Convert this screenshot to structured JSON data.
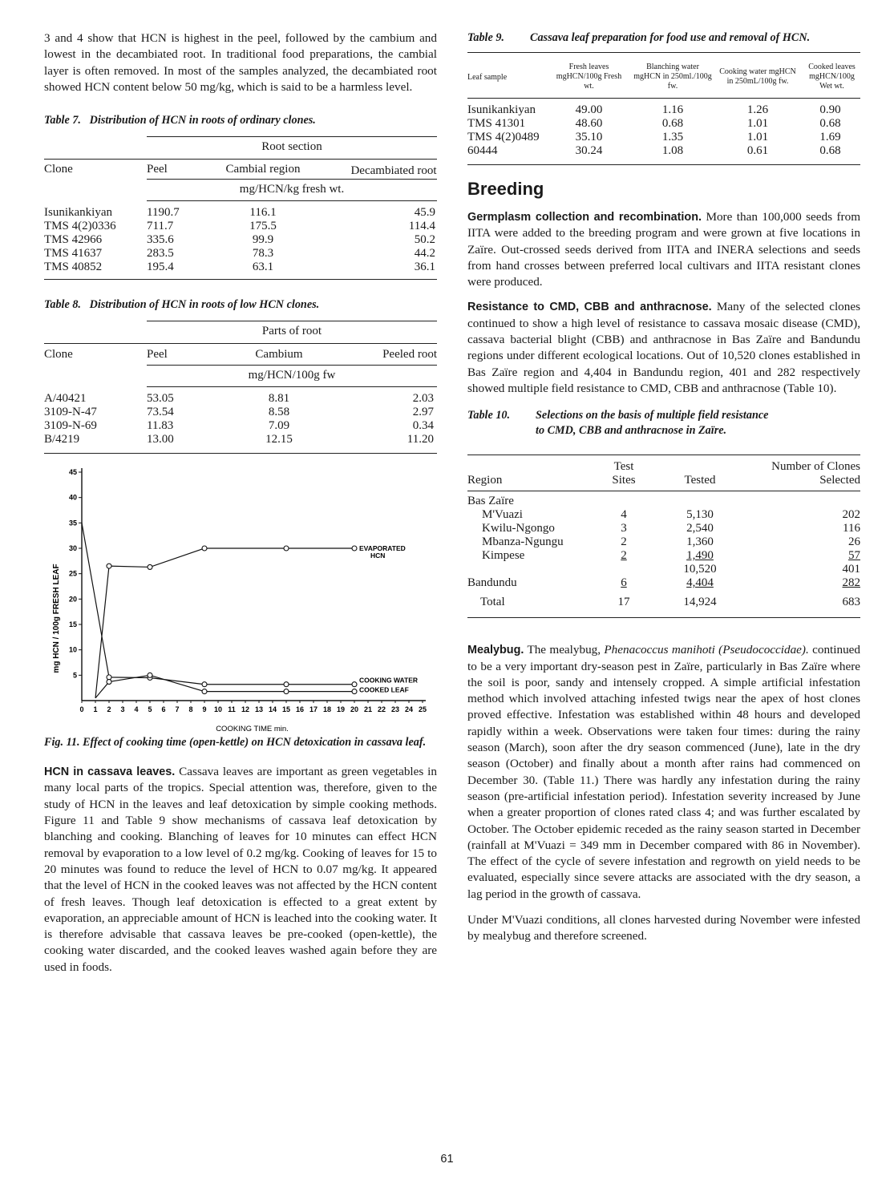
{
  "page_number": "61",
  "left": {
    "intro_paragraph": "3 and 4 show that HCN is highest in the peel, followed by the cambium and lowest in the decambiated root. In traditional food preparations, the cambial layer is often removed. In most of the samples analyzed, the decambiated root showed HCN content below 50 mg/kg, which is said to be a harmless level.",
    "table7": {
      "label": "Table 7.",
      "title": "Distribution of HCN in roots of ordinary clones.",
      "group_header": "Root section",
      "columns": [
        "Clone",
        "Peel",
        "Cambial region",
        "Decambiated root"
      ],
      "unit": "mg/HCN/kg fresh wt.",
      "rows": [
        [
          "Isunikankiyan",
          "1190.7",
          "116.1",
          "45.9"
        ],
        [
          "TMS 4(2)0336",
          "711.7",
          "175.5",
          "114.4"
        ],
        [
          "TMS 42966",
          "335.6",
          "99.9",
          "50.2"
        ],
        [
          "TMS 41637",
          "283.5",
          "78.3",
          "44.2"
        ],
        [
          "TMS 40852",
          "195.4",
          "63.1",
          "36.1"
        ]
      ]
    },
    "table8": {
      "label": "Table 8.",
      "title": "Distribution of HCN in roots of low HCN clones.",
      "group_header": "Parts of root",
      "columns": [
        "Clone",
        "Peel",
        "Cambium",
        "Peeled root"
      ],
      "unit": "mg/HCN/100g fw",
      "rows": [
        [
          "A/40421",
          "53.05",
          "8.81",
          "2.03"
        ],
        [
          "3109-N-47",
          "73.54",
          "8.58",
          "2.97"
        ],
        [
          "3109-N-69",
          "11.83",
          "7.09",
          "0.34"
        ],
        [
          "B/4219",
          "13.00",
          "12.15",
          "11.20"
        ]
      ]
    },
    "figure": {
      "label": "Fig. 11.",
      "caption": "Effect of cooking time (open-kettle) on HCN detoxication in cassava leaf."
    },
    "hcn_heading": "HCN in cassava leaves.",
    "hcn_paragraph": "Cassava leaves are important as green vegetables in many local parts of the tropics. Special attention was, therefore, given to the study of HCN in the leaves and leaf detoxication by simple cooking methods. Figure 11 and Table 9 show mechanisms of cassava leaf detoxication by blanching and cooking. Blanching of leaves for 10 minutes can effect HCN removal by evaporation to a low level of 0.2 mg/kg. Cooking of leaves for 15 to 20 minutes was found to reduce the level of HCN to 0.07 mg/kg. It appeared that the level of HCN in the cooked leaves was not affected by the HCN content of fresh leaves. Though leaf detoxication is effected to a great extent by evaporation, an appreciable amount of HCN is leached into the cooking water. It is therefore advisable that cassava leaves be pre-cooked (open-kettle), the cooking water discarded, and the cooked leaves washed again before they are used in foods."
  },
  "right": {
    "table9": {
      "label": "Table 9.",
      "title": "Cassava leaf preparation for food use and removal of HCN.",
      "columns": [
        "Leaf sample",
        "Fresh leaves mgHCN/100g Fresh wt.",
        "Blanching water mgHCN in 250ml./100g fw.",
        "Cooking water mgHCN in 250mL/100g fw.",
        "Cooked leaves mgHCN/100g Wet wt."
      ],
      "rows": [
        [
          "Isunikankiyan",
          "49.00",
          "1.16",
          "1.26",
          "0.90"
        ],
        [
          "TMS 41301",
          "48.60",
          "0.68",
          "1.01",
          "0.68"
        ],
        [
          "TMS 4(2)0489",
          "35.10",
          "1.35",
          "1.01",
          "1.69"
        ],
        [
          "60444",
          "30.24",
          "1.08",
          "0.61",
          "0.68"
        ]
      ]
    },
    "breeding_heading": "Breeding",
    "germplasm_heading": "Germplasm collection and recombination.",
    "germplasm_paragraph": "More than 100,000 seeds from IITA were added to the breeding program and were grown at five locations in Zaïre. Out-crossed seeds derived from IITA and INERA selections and seeds from hand crosses between preferred local cultivars and IITA resistant clones were produced.",
    "resistance_heading": "Resistance to CMD, CBB and anthracnose.",
    "resistance_paragraph": "Many of the selected clones continued to show a high level of resistance to cassava mosaic disease (CMD), cassava bacterial blight (CBB) and anthracnose in Bas Zaïre and Bandundu regions under different ecological locations. Out of 10,520 clones established in Bas Zaïre region and 4,404 in Bandundu region, 401 and 282 respectively showed multiple field resistance to CMD, CBB and anthracnose (Table 10).",
    "table10": {
      "label": "Table 10.",
      "title_line1": "Selections on the basis of multiple field resistance",
      "title_line2": "to CMD, CBB and anthracnose in Zaïre.",
      "head_test": "Test",
      "head_sites": "Sites",
      "head_number": "Number of Clones",
      "head_region": "Region",
      "head_tested": "Tested",
      "head_selected": "Selected",
      "region1": "Bas Zaïre",
      "rows": [
        [
          "M'Vuazi",
          "4",
          "5,130",
          "202"
        ],
        [
          "Kwilu-Ngongo",
          "3",
          "2,540",
          "116"
        ],
        [
          "Mbanza-Ngungu",
          "2",
          "1,360",
          "26"
        ],
        [
          "Kimpese",
          "2",
          "1,490",
          "57"
        ]
      ],
      "subtotal": [
        "",
        "",
        "10,520",
        "401"
      ],
      "bandundu": [
        "Bandundu",
        "6",
        "4,404",
        "282"
      ],
      "total": [
        "Total",
        "17",
        "14,924",
        "683"
      ]
    },
    "mealybug_heading": "Mealybug.",
    "mealybug_paragraph_a": "The mealybug,",
    "mealybug_species": "Phenacoccus manihoti (Pseudococcidae).",
    "mealybug_paragraph_b": "continued to be a very important dry-season pest in Zaïre, particularly in Bas Zaïre where the soil is poor, sandy and intensely cropped. A simple artificial infestation method which involved attaching infested twigs near the apex of host clones proved effective. Infestation was established within 48 hours and developed rapidly within a week. Observations were taken four times: during the rainy season (March), soon after the dry season commenced (June), late in the dry season (October) and finally about a month after rains had commenced on December 30. (Table 11.) There was hardly any infestation during the rainy season (pre-artificial infestation period). Infestation severity increased by June when a greater proportion of clones rated class 4; and was further escalated by October. The October epidemic receded as the rainy season started in December (rainfall at M'Vuazi = 349 mm in December compared with 86 in November). The effect of the cycle of severe infestation and regrowth on yield needs to be evaluated, especially since severe attacks are associated with the dry season, a lag period in the growth of cassava.",
    "last_paragraph": "Under M'Vuazi conditions, all clones harvested during November were infested by mealybug and therefore screened."
  },
  "chart_data": {
    "type": "line",
    "title": "",
    "xlabel": "COOKING TIME min.",
    "ylabel": "mg HCN / 100g FRESH LEAF",
    "xlim": [
      0,
      25
    ],
    "ylim": [
      0,
      45
    ],
    "x_ticks": [
      "0",
      "1",
      "2",
      "3",
      "4",
      "5",
      "6",
      "7",
      "8",
      "9",
      "10",
      "11",
      "12",
      "13",
      "14",
      "15",
      "16",
      "17",
      "18",
      "19",
      "20",
      "21",
      "22",
      "23",
      "24",
      "25"
    ],
    "y_ticks": [
      "5",
      "10",
      "15",
      "20",
      "25",
      "30",
      "35",
      "40",
      "45"
    ],
    "series": [
      {
        "name": "EVAPORATED HCN",
        "x": [
          1,
          2,
          5,
          9,
          15,
          20
        ],
        "y": [
          0.5,
          26.5,
          26.3,
          30,
          30,
          30
        ]
      },
      {
        "name": "COOKING WATER",
        "x": [
          0,
          2,
          5,
          9,
          15,
          20
        ],
        "y": [
          35,
          4.6,
          4.5,
          3.2,
          3.2,
          3.2
        ]
      },
      {
        "name": "COOKED LEAF",
        "x": [
          1,
          2,
          5,
          9,
          15,
          20
        ],
        "y": [
          0.5,
          3.7,
          5,
          1.8,
          1.8,
          1.8
        ]
      }
    ]
  }
}
